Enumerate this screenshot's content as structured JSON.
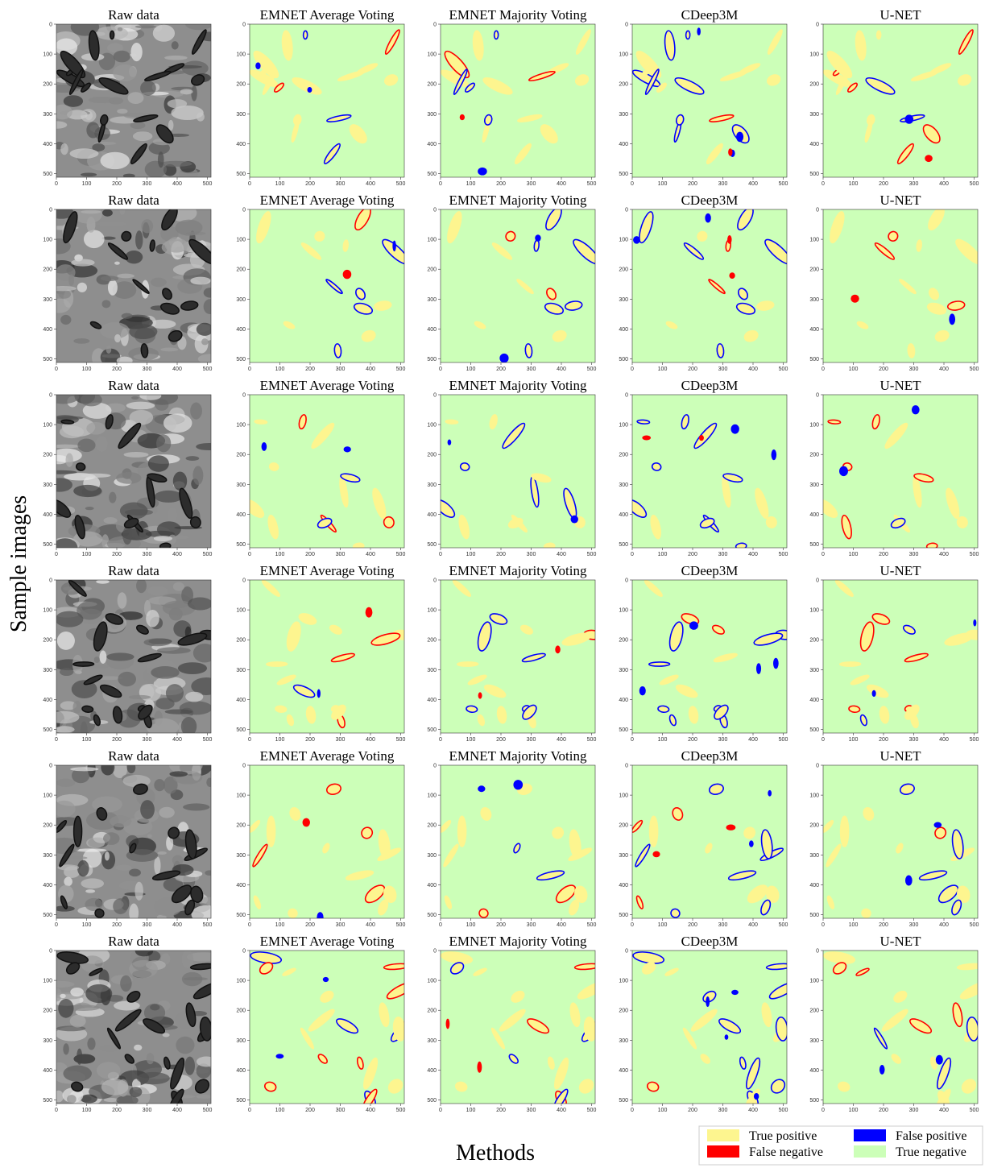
{
  "figure": {
    "column_titles": [
      "Raw data",
      "EMNET Average Voting",
      "EMNET Majority Voting",
      "CDeep3M",
      "U-NET"
    ],
    "rows": 6,
    "axis_range": [
      0,
      512
    ],
    "ticks": [
      0,
      100,
      200,
      300,
      400,
      500
    ],
    "ylabel": "Sample images",
    "xlabel": "Methods",
    "legend": [
      {
        "label": "True positive",
        "color": "#fdf58f"
      },
      {
        "label": "False negative",
        "color": "#ff0000"
      },
      {
        "label": "False positive",
        "color": "#0000ff"
      },
      {
        "label": "True negative",
        "color": "#ccffb8"
      }
    ]
  }
}
